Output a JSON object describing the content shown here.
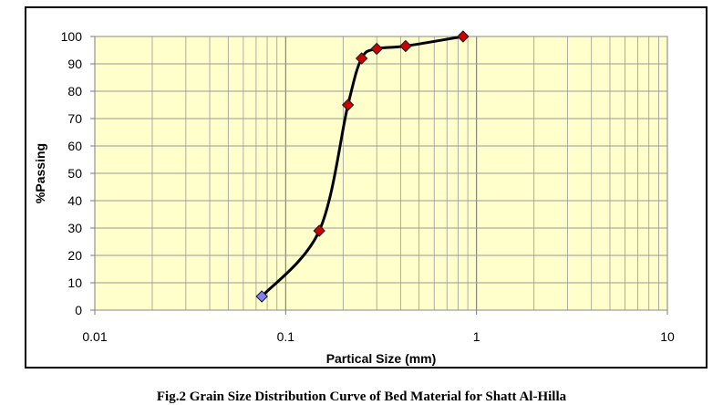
{
  "figure": {
    "caption": "Fig.2 Grain Size Distribution Curve of Bed Material for Shatt Al-Hilla"
  },
  "chart_data": {
    "type": "scatter",
    "title": "",
    "xlabel": "Partical Size (mm)",
    "ylabel": "%Passing",
    "x_scale": "log",
    "xlim": [
      0.01,
      10
    ],
    "ylim": [
      0,
      100
    ],
    "x_ticks": [
      {
        "value": 0.01,
        "label": "0.01"
      },
      {
        "value": 0.1,
        "label": "0.1"
      },
      {
        "value": 1,
        "label": "1"
      },
      {
        "value": 10,
        "label": "10"
      }
    ],
    "y_ticks": [
      0,
      10,
      20,
      30,
      40,
      50,
      60,
      70,
      80,
      90,
      100
    ],
    "grid": true,
    "plot_background": "#FFFFCC",
    "grid_color": "#9A9A9A",
    "line_color": "#000000",
    "marker_color": "#CC0000",
    "first_marker_color": "#8080FF",
    "series": [
      {
        "points": [
          {
            "x": 0.075,
            "y": 5
          },
          {
            "x": 0.15,
            "y": 29
          },
          {
            "x": 0.212,
            "y": 75
          },
          {
            "x": 0.25,
            "y": 92
          },
          {
            "x": 0.3,
            "y": 95.5
          },
          {
            "x": 0.425,
            "y": 96.5
          },
          {
            "x": 0.85,
            "y": 100
          }
        ]
      }
    ]
  }
}
